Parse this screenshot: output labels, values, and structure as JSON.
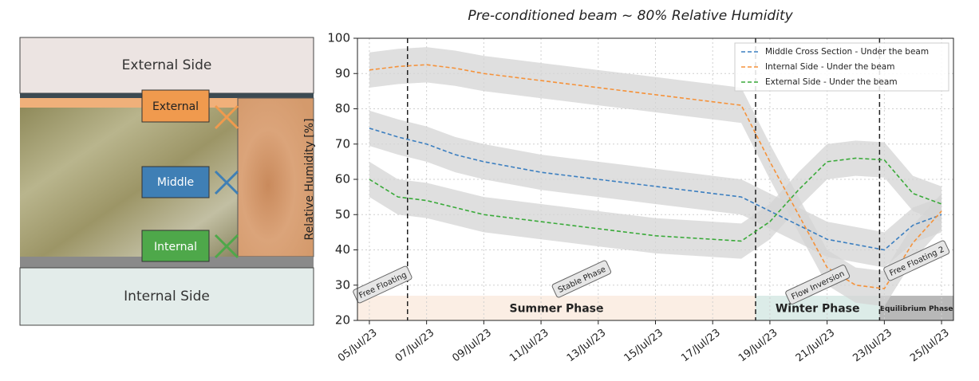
{
  "diagram": {
    "top_label": "External Side",
    "bottom_label": "Internal Side",
    "sensors": [
      "External",
      "Middle",
      "Internal"
    ]
  },
  "chart_data": {
    "type": "line",
    "title": "Pre-conditioned beam ~ 80% Relative Humidity",
    "ylabel": "Relative Humidity [%]",
    "x": [
      "2023-07-05",
      "2023-07-06",
      "2023-07-07",
      "2023-07-08",
      "2023-07-09",
      "2023-07-10",
      "2023-07-11",
      "2023-07-12",
      "2023-07-13",
      "2023-07-14",
      "2023-07-15",
      "2023-07-16",
      "2023-07-17",
      "2023-07-18",
      "2023-07-19",
      "2023-07-20",
      "2023-07-21",
      "2023-07-22",
      "2023-07-23",
      "2023-07-24",
      "2023-07-25"
    ],
    "xlim": [
      "2023-07-04T14:00",
      "2023-07-25T10:00"
    ],
    "xticks": [
      {
        "value": "2023-07-05",
        "label": "05/Jul/23"
      },
      {
        "value": "2023-07-07",
        "label": "07/Jul/23"
      },
      {
        "value": "2023-07-09",
        "label": "09/Jul/23"
      },
      {
        "value": "2023-07-11",
        "label": "11/Jul/23"
      },
      {
        "value": "2023-07-13",
        "label": "13/Jul/23"
      },
      {
        "value": "2023-07-15",
        "label": "15/Jul/23"
      },
      {
        "value": "2023-07-17",
        "label": "17/Jul/23"
      },
      {
        "value": "2023-07-19",
        "label": "19/Jul/23"
      },
      {
        "value": "2023-07-21",
        "label": "21/Jul/23"
      },
      {
        "value": "2023-07-23",
        "label": "23/Jul/23"
      },
      {
        "value": "2023-07-25",
        "label": "25/Jul/23"
      }
    ],
    "ylim": [
      20,
      100
    ],
    "yticks": [
      20,
      30,
      40,
      50,
      60,
      70,
      80,
      90,
      100
    ],
    "grid": true,
    "legend": "upper right",
    "series": [
      {
        "name": "Middle Cross Section - Under the beam",
        "color": "#3c7fc0",
        "values": [
          74.5,
          72,
          70,
          67,
          65,
          63.5,
          62,
          61,
          60,
          59,
          58,
          57,
          56,
          55,
          51,
          47,
          43,
          41.5,
          40,
          47,
          50
        ],
        "lower": [
          69.5,
          67,
          65,
          62,
          60,
          58.5,
          57,
          56,
          55,
          54,
          53,
          52,
          51,
          50,
          46,
          42,
          38,
          36.5,
          35,
          42,
          45
        ],
        "upper": [
          79.5,
          77,
          75,
          72,
          70,
          68.5,
          67,
          66,
          65,
          64,
          63,
          62,
          61,
          60,
          56,
          52,
          48,
          46.5,
          45,
          52,
          55
        ]
      },
      {
        "name": "Internal Side -  Under the beam",
        "color": "#f5923a",
        "values": [
          91,
          92,
          92.5,
          91.5,
          90,
          89,
          88,
          87,
          86,
          85,
          84,
          83,
          82,
          81,
          65,
          50,
          35,
          30,
          29,
          42,
          51
        ],
        "lower": [
          86,
          87,
          87.5,
          86.5,
          85,
          84,
          83,
          82,
          81,
          80,
          79,
          78,
          77,
          76,
          60,
          45,
          30,
          25,
          24,
          37,
          46
        ],
        "upper": [
          96,
          97,
          97.5,
          96.5,
          95,
          94,
          93,
          92,
          91,
          90,
          89,
          88,
          87,
          86,
          70,
          55,
          40,
          35,
          34,
          47,
          56
        ]
      },
      {
        "name": "External Side -  Under the beam",
        "color": "#3aaa3a",
        "values": [
          60,
          55,
          54,
          52,
          50,
          49,
          48,
          47,
          46,
          45,
          44,
          43.5,
          43,
          42.5,
          48,
          57,
          65,
          66,
          65.5,
          56,
          53
        ],
        "lower": [
          55,
          50,
          49,
          47,
          45,
          44,
          43,
          42,
          41,
          40,
          39,
          38.5,
          38,
          37.5,
          43,
          52,
          60,
          61,
          60.5,
          51,
          48
        ],
        "upper": [
          65,
          60,
          59,
          57,
          55,
          54,
          53,
          52,
          51,
          50,
          49,
          48.5,
          48,
          47.5,
          53,
          62,
          70,
          71,
          70.5,
          61,
          58
        ]
      }
    ],
    "band_color": "#d4d4d4",
    "vlines": [
      "2023-07-06T08:00",
      "2023-07-18T12:00",
      "2023-07-22T20:00"
    ],
    "annotations": [
      "Free Floating",
      "Stable Phase",
      "Flow Inversion",
      "Free Floating 2"
    ],
    "phases": [
      {
        "label": "Summer Phase",
        "color": "#fbeee4"
      },
      {
        "label": "Winter Phase",
        "color": "#dcece8"
      },
      {
        "label": "Equilibrium Phase",
        "color": "#b8b8b8"
      }
    ]
  }
}
